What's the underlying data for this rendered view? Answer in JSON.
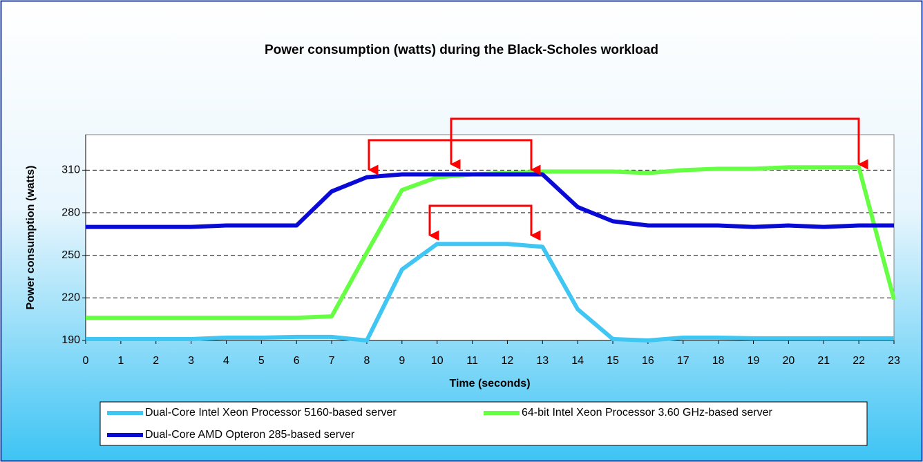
{
  "chart_data": {
    "type": "line",
    "title": "Power consumption (watts) during the Black-Scholes workload",
    "x_label": "Time (seconds)",
    "y_label": "Power consumption (watts)",
    "x": [
      0,
      1,
      2,
      3,
      4,
      5,
      6,
      7,
      8,
      9,
      10,
      11,
      12,
      13,
      14,
      15,
      16,
      17,
      18,
      19,
      20,
      21,
      22,
      23
    ],
    "xlim": [
      0,
      23
    ],
    "xticks": [
      0,
      1,
      2,
      3,
      4,
      5,
      6,
      7,
      8,
      9,
      10,
      11,
      12,
      13,
      14,
      15,
      16,
      17,
      18,
      19,
      20,
      21,
      22,
      23
    ],
    "ylim": [
      190,
      335
    ],
    "yticks": [
      190,
      220,
      250,
      280,
      310
    ],
    "grid": true,
    "series": [
      {
        "name": "Dual-Core Intel Xeon Processor 5160-based server",
        "color": "#3fc6f2",
        "values": [
          191,
          191,
          191,
          191,
          192,
          192,
          192.5,
          192.5,
          190,
          240,
          258,
          258,
          258,
          256,
          212,
          191,
          190,
          192,
          192,
          191.5,
          191.5,
          191.5,
          191.5,
          191.5
        ]
      },
      {
        "name": "64-bit Intel Xeon Processor 3.60 GHz-based server",
        "color": "#66ff44",
        "values": [
          206,
          206,
          206,
          206,
          206,
          206,
          206,
          207,
          252,
          296,
          305,
          307,
          308,
          309,
          309,
          309,
          308,
          310,
          311,
          311,
          312,
          312,
          312,
          219
        ]
      },
      {
        "name": "Dual-Core AMD Opteron 285-based server",
        "color": "#0a0ad6",
        "values": [
          270,
          270,
          270,
          270,
          271,
          271,
          271,
          295,
          305,
          307,
          307,
          307,
          307,
          307,
          284,
          274,
          271,
          271,
          271,
          270,
          271,
          270,
          271,
          271
        ]
      }
    ]
  }
}
